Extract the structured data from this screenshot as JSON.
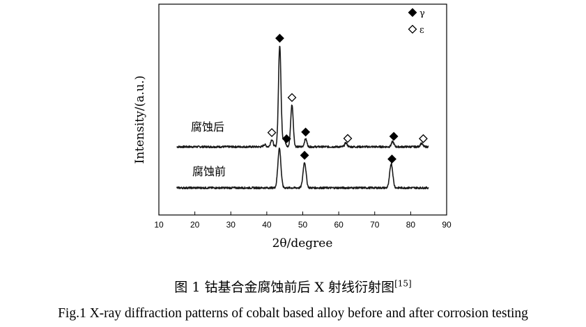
{
  "chart_data": {
    "type": "line",
    "xlabel": "2θ/degree",
    "ylabel": "Intensity/(a.u.)",
    "xlim": [
      10,
      90
    ],
    "xticks": [
      10,
      20,
      30,
      40,
      50,
      60,
      70,
      80,
      90
    ],
    "x_range": [
      15,
      85
    ],
    "grid": false,
    "legend": [
      {
        "marker": "filled-diamond",
        "label": "γ"
      },
      {
        "marker": "open-diamond",
        "label": "ε"
      }
    ],
    "legend_position": "top-right",
    "series": [
      {
        "name": "腐蚀后",
        "peaks": [
          {
            "x": 39.4,
            "height": 0.08
          },
          {
            "x": 41.4,
            "height": 0.26,
            "phase": "ε"
          },
          {
            "x": 43.6,
            "height": 3.65,
            "phase": "γ"
          },
          {
            "x": 44.8,
            "height": 0.28
          },
          {
            "x": 47.0,
            "height": 1.52,
            "phase": "ε"
          },
          {
            "x": 50.8,
            "height": 0.28,
            "phase": "γ"
          },
          {
            "x": 62.0,
            "height": 0.14,
            "phase": "ε"
          },
          {
            "x": 75.0,
            "height": 0.18,
            "phase": "γ"
          },
          {
            "x": 83.0,
            "height": 0.12,
            "phase": "ε"
          }
        ],
        "markers": [
          {
            "x": 43.6,
            "phase": "γ"
          },
          {
            "x": 41.4,
            "phase": "ε"
          },
          {
            "x": 47.0,
            "phase": "ε"
          },
          {
            "x": 45.5,
            "phase": "γ"
          },
          {
            "x": 50.8,
            "phase": "γ"
          },
          {
            "x": 62.5,
            "phase": "ε"
          },
          {
            "x": 75.3,
            "phase": "γ"
          },
          {
            "x": 83.5,
            "phase": "ε"
          }
        ]
      },
      {
        "name": "腐蚀前",
        "peaks": [
          {
            "x": 43.5,
            "height": 1.42,
            "phase": "γ"
          },
          {
            "x": 50.5,
            "height": 0.92,
            "phase": "γ"
          },
          {
            "x": 74.6,
            "height": 0.88,
            "phase": "γ"
          }
        ],
        "markers": [
          {
            "x": 50.5,
            "phase": "γ"
          },
          {
            "x": 74.8,
            "phase": "γ"
          }
        ]
      }
    ]
  },
  "caption": {
    "cn": "图 1 钴基合金腐蚀前后 X 射线衍射图",
    "ref": "[15]",
    "en": "Fig.1 X-ray diffraction patterns of cobalt based alloy before and after corrosion testing"
  },
  "colors": {
    "line": "#1a1a1a",
    "marker": "#000000",
    "frame": "#000000"
  }
}
